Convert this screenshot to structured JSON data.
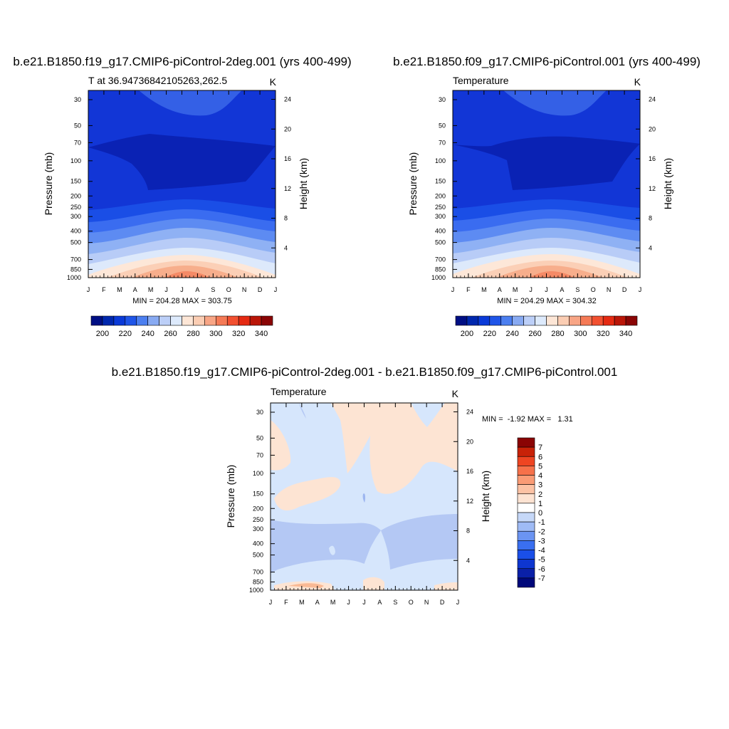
{
  "chart_data": [
    {
      "type": "contour",
      "title": "b.e21.B1850.f19_g17.CMIP6-piControl-2deg.001 (yrs 400-499)",
      "left_label": "T at 36.94736842105263,262.5",
      "units": "K",
      "ylabel": "Pressure (mb)",
      "y2label": "Height (km)",
      "stats": "MIN = 204.28 MAX = 303.75",
      "x_ticks": [
        "J",
        "F",
        "M",
        "A",
        "M",
        "J",
        "J",
        "A",
        "S",
        "O",
        "N",
        "D",
        "J"
      ],
      "pressure_ticks": [
        30,
        50,
        70,
        100,
        150,
        200,
        250,
        300,
        400,
        500,
        700,
        850,
        1000
      ],
      "height_ticks": [
        4,
        8,
        12,
        16,
        20,
        24
      ],
      "colorbar": {
        "orientation": "horizontal",
        "labels": [
          200,
          220,
          240,
          260,
          280,
          300,
          320,
          340
        ]
      }
    },
    {
      "type": "contour",
      "title": "b.e21.B1850.f09_g17.CMIP6-piControl.001 (yrs 400-499)",
      "left_label": "Temperature",
      "units": "K",
      "ylabel": "Pressure (mb)",
      "y2label": "Height (km)",
      "stats": "MIN = 204.29 MAX = 304.32",
      "x_ticks": [
        "J",
        "F",
        "M",
        "A",
        "M",
        "J",
        "J",
        "A",
        "S",
        "O",
        "N",
        "D",
        "J"
      ],
      "pressure_ticks": [
        30,
        50,
        70,
        100,
        150,
        200,
        250,
        300,
        400,
        500,
        700,
        850,
        1000
      ],
      "height_ticks": [
        4,
        8,
        12,
        16,
        20,
        24
      ],
      "colorbar": {
        "orientation": "horizontal",
        "labels": [
          200,
          220,
          240,
          260,
          280,
          300,
          320,
          340
        ]
      }
    },
    {
      "type": "contour",
      "title": "b.e21.B1850.f19_g17.CMIP6-piControl-2deg.001 - b.e21.B1850.f09_g17.CMIP6-piControl.001",
      "left_label": "Temperature",
      "units": "K",
      "ylabel": "Pressure (mb)",
      "y2label": "Height (km)",
      "stats": "MIN =  -1.92 MAX =   1.31",
      "x_ticks": [
        "J",
        "F",
        "M",
        "A",
        "M",
        "J",
        "J",
        "A",
        "S",
        "O",
        "N",
        "D",
        "J"
      ],
      "pressure_ticks": [
        30,
        50,
        70,
        100,
        150,
        200,
        250,
        300,
        400,
        500,
        700,
        850,
        1000
      ],
      "height_ticks": [
        4,
        8,
        12,
        16,
        20,
        24
      ],
      "colorbar": {
        "orientation": "vertical",
        "labels": [
          7,
          6,
          5,
          4,
          3,
          2,
          1,
          0,
          -1,
          -2,
          -3,
          -4,
          -5,
          -6,
          -7
        ]
      }
    }
  ],
  "palette": {
    "abs_colors": [
      "#000f84",
      "#0028ae",
      "#0a3ad8",
      "#1f55e8",
      "#4c7ff0",
      "#88aaf2",
      "#bccff8",
      "#ddeafc",
      "#fde6d6",
      "#fbcdb3",
      "#f8a585",
      "#f57a56",
      "#f25030",
      "#e52a12",
      "#ba1608",
      "#8a0505"
    ],
    "diff_colors": [
      "#00087a",
      "#0a20a8",
      "#0e36d0",
      "#1a4fe8",
      "#3a6ff0",
      "#6b94f2",
      "#9fbbf5",
      "#c6d8f8",
      "#ffffff",
      "#fde3d2",
      "#fcc2a4",
      "#fa9b75",
      "#f6714a",
      "#ee4522",
      "#c82208",
      "#8a0404"
    ],
    "model1_fields": {
      "strato_cap": "#3460e6",
      "upper": "#1236d6",
      "core": "#0a22b4",
      "layer_255": "#1a4ee6",
      "layer_290": "#3a6cf0",
      "layer_350": "#5d8bf2",
      "layer_430": "#8fb1f4",
      "layer_520": "#b8ccf7",
      "layer_620": "#dde9fb",
      "layer_720": "#fde7d8",
      "layer_830": "#fbcfb6",
      "layer_920": "#f7ae8c",
      "layer_980": "#f58a66"
    },
    "diff_fields": {
      "base": "#d6e6fc",
      "warm": "#fde4d3",
      "cool": "#b4c8f4",
      "cold_spot": "#9db6f0",
      "strong_warm": "#f9b994"
    }
  }
}
